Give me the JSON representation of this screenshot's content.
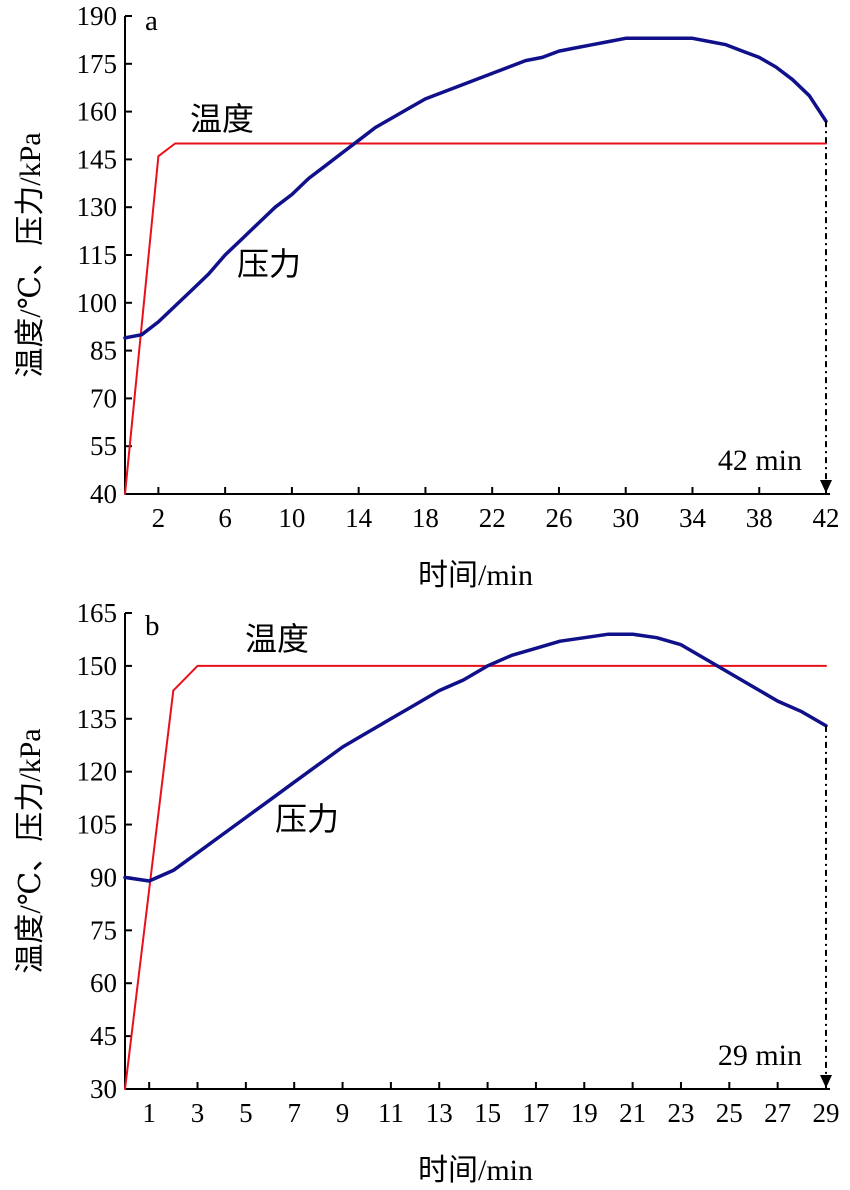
{
  "colors": {
    "temperature": "#e8101a",
    "pressure": "#10108a",
    "axis": "#000000"
  },
  "chart_data": [
    {
      "type": "line",
      "panel_label": "a",
      "xlabel": "时间/min",
      "ylabel": "温度/℃、压力/kPa",
      "xlim": [
        0,
        42
      ],
      "ylim": [
        40,
        190
      ],
      "x_ticks": [
        2,
        6,
        10,
        14,
        18,
        22,
        26,
        30,
        34,
        38,
        42
      ],
      "y_ticks": [
        40,
        55,
        70,
        85,
        100,
        115,
        130,
        145,
        160,
        175,
        190
      ],
      "grid": false,
      "series": [
        {
          "name": "温度",
          "x": [
            0,
            2,
            3,
            42
          ],
          "y": [
            40,
            146,
            150,
            150
          ]
        },
        {
          "name": "压力",
          "x": [
            0,
            1,
            2,
            3,
            4,
            5,
            6,
            7,
            8,
            9,
            10,
            11,
            12,
            13,
            14,
            15,
            16,
            17,
            18,
            19,
            20,
            21,
            22,
            23,
            24,
            25,
            26,
            27,
            28,
            29,
            30,
            31,
            32,
            33,
            34,
            35,
            36,
            37,
            38,
            39,
            40,
            41,
            42
          ],
          "y": [
            89,
            90,
            94,
            99,
            104,
            109,
            115,
            120,
            125,
            130,
            134,
            139,
            143,
            147,
            151,
            155,
            158,
            161,
            164,
            166,
            168,
            170,
            172,
            174,
            176,
            177,
            179,
            180,
            181,
            182,
            183,
            183,
            183,
            183,
            183,
            182,
            181,
            179,
            177,
            174,
            170,
            165,
            157
          ]
        }
      ],
      "annotation": {
        "text": "42 min",
        "x": 42
      }
    },
    {
      "type": "line",
      "panel_label": "b",
      "xlabel": "时间/min",
      "ylabel": "温度/℃、压力/kPa",
      "xlim": [
        0,
        29
      ],
      "ylim": [
        30,
        165
      ],
      "x_ticks": [
        1,
        3,
        5,
        7,
        9,
        11,
        13,
        15,
        17,
        19,
        21,
        23,
        25,
        27,
        29
      ],
      "y_ticks": [
        30,
        45,
        60,
        75,
        90,
        105,
        120,
        135,
        150,
        165
      ],
      "grid": false,
      "series": [
        {
          "name": "温度",
          "x": [
            0,
            2,
            3,
            29
          ],
          "y": [
            30,
            143,
            150,
            150
          ]
        },
        {
          "name": "压力",
          "x": [
            0,
            1,
            2,
            3,
            4,
            5,
            6,
            7,
            8,
            9,
            10,
            11,
            12,
            13,
            14,
            15,
            16,
            17,
            18,
            19,
            20,
            21,
            22,
            23,
            24,
            25,
            26,
            27,
            28,
            29
          ],
          "y": [
            90,
            89,
            92,
            97,
            102,
            107,
            112,
            117,
            122,
            127,
            131,
            135,
            139,
            143,
            146,
            150,
            153,
            155,
            157,
            158,
            159,
            159,
            158,
            156,
            152,
            148,
            144,
            140,
            137,
            133
          ]
        }
      ],
      "annotation": {
        "text": "29 min",
        "x": 29
      }
    }
  ]
}
